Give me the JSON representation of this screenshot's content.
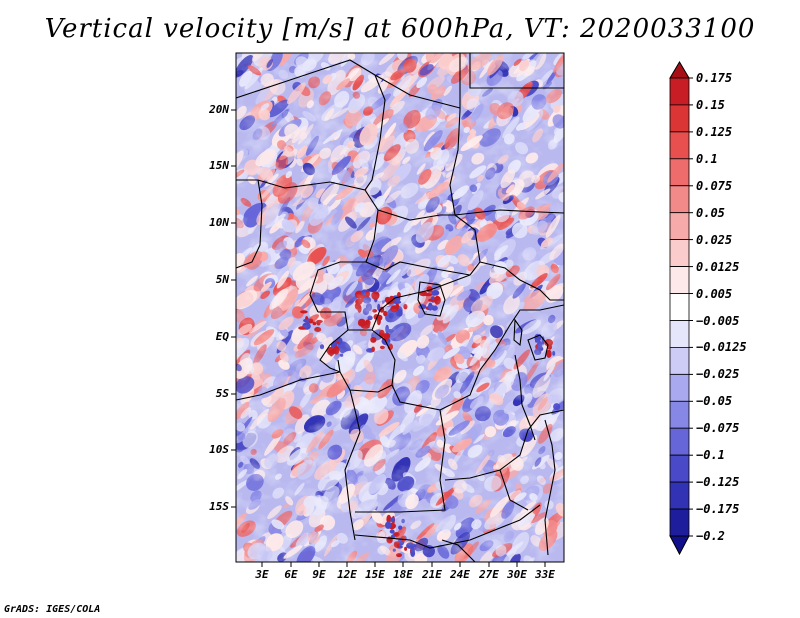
{
  "title": "Vertical velocity [m/s] at 600hPa, VT: 2020033100",
  "credit": "GrADS: IGES/COLA",
  "map": {
    "variable": "Vertical velocity",
    "units": "m/s",
    "level": "600hPa",
    "valid_time": "2020033100",
    "lat_ticks": [
      "20N",
      "15N",
      "10N",
      "5N",
      "EQ",
      "5S",
      "10S",
      "15S"
    ],
    "lon_ticks": [
      "3E",
      "6E",
      "9E",
      "12E",
      "15E",
      "18E",
      "21E",
      "24E",
      "27E",
      "30E",
      "33E"
    ]
  },
  "colorbar": {
    "labels": [
      "0.175",
      "0.15",
      "0.125",
      "0.1",
      "0.075",
      "0.05",
      "0.025",
      "0.0125",
      "0.005",
      "−0.005",
      "−0.0125",
      "−0.025",
      "−0.05",
      "−0.075",
      "−0.1",
      "−0.125",
      "−0.175",
      "−0.2"
    ],
    "colors": [
      "#a50f15",
      "#c81d25",
      "#dc3535",
      "#e85050",
      "#ee6c6c",
      "#f38a8a",
      "#f7aaaa",
      "#fbcccc",
      "#fde9e9",
      "#ffffff",
      "#e6e6fb",
      "#ccccf6",
      "#a9a9ef",
      "#8787e6",
      "#6666d9",
      "#4a4ac9",
      "#3232b5",
      "#1e1e9c",
      "#10108a"
    ]
  }
}
